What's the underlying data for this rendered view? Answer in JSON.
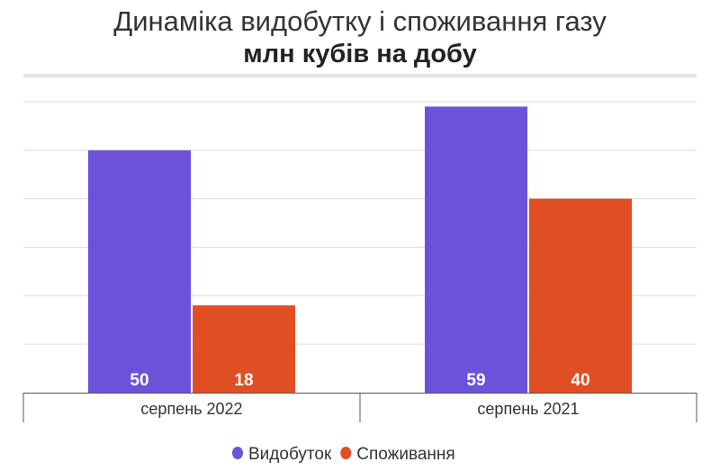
{
  "chart_data": {
    "type": "bar",
    "title": "Динаміка видобутку і споживання газу",
    "subtitle": "млн кубів на добу",
    "categories": [
      "серпень 2022",
      "серпень 2021"
    ],
    "series": [
      {
        "name": "Видобуток",
        "color": "#6c52d9",
        "values": [
          50,
          59
        ]
      },
      {
        "name": "Споживання",
        "color": "#e04e24",
        "values": [
          18,
          40
        ]
      }
    ],
    "xlabel": "",
    "ylabel": "",
    "ylim": [
      0,
      60
    ],
    "ytick_step": 10,
    "grid": true,
    "legend_position": "bottom"
  }
}
